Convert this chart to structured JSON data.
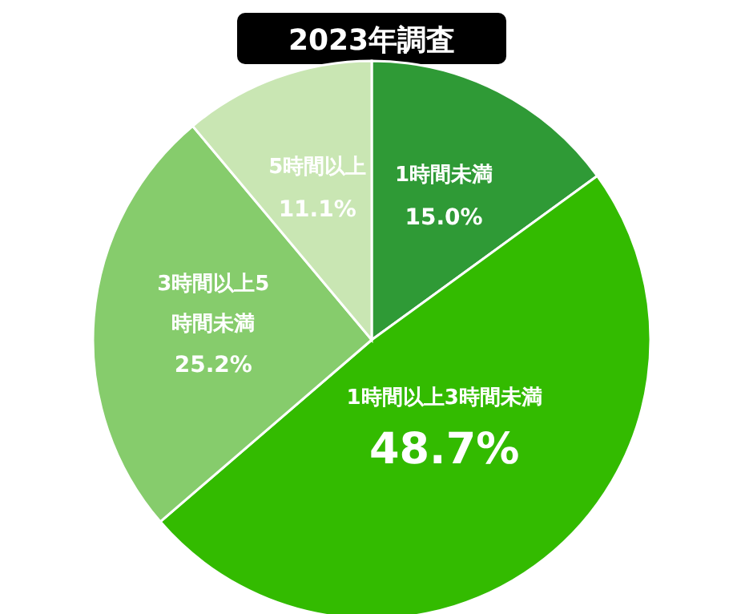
{
  "chart_data": {
    "type": "pie",
    "title": "2023年調査",
    "categories": [
      "1時間未満",
      "1時間以上3時間未満",
      "3時間以上5時間未満",
      "5時間以上"
    ],
    "values": [
      15.0,
      48.7,
      25.2,
      11.1
    ],
    "colors": [
      "#2f9a36",
      "#33bb00",
      "#86cc6c",
      "#c9e6b3"
    ],
    "value_labels": [
      "15.0%",
      "48.7%",
      "25.2%",
      "11.1%"
    ]
  }
}
